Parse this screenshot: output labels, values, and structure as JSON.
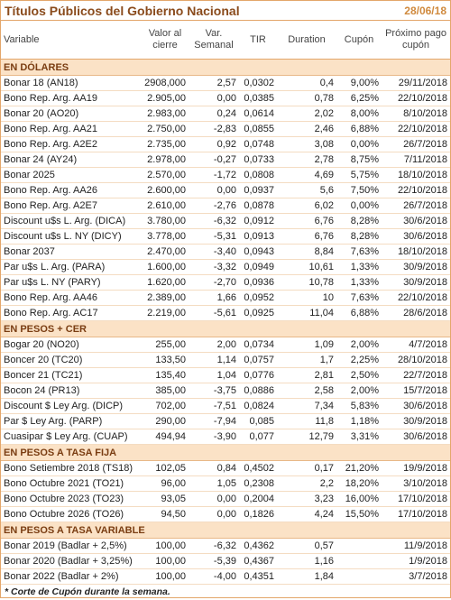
{
  "header": {
    "title": "Títulos Públicos del Gobierno Nacional",
    "date": "28/06/18"
  },
  "table": {
    "columns": [
      "Variable",
      "Valor al cierre",
      "Var. Semanal",
      "TIR",
      "Duration",
      "Cupón",
      "Próximo pago cupón"
    ],
    "sections": [
      {
        "title": "EN DÓLARES",
        "rows": [
          [
            "Bonar 18 (AN18)",
            "2908,000",
            "2,57",
            "0,0302",
            "0,4",
            "9,00%",
            "29/11/2018"
          ],
          [
            "Bono Rep. Arg. AA19",
            "2.905,00",
            "0,00",
            "0,0385",
            "0,78",
            "6,25%",
            "22/10/2018"
          ],
          [
            "Bonar 20 (AO20)",
            "2.983,00",
            "0,24",
            "0,0614",
            "2,02",
            "8,00%",
            "8/10/2018"
          ],
          [
            "Bono Rep. Arg. AA21",
            "2.750,00",
            "-2,83",
            "0,0855",
            "2,46",
            "6,88%",
            "22/10/2018"
          ],
          [
            "Bono Rep. Arg. A2E2",
            "2.735,00",
            "0,92",
            "0,0748",
            "3,08",
            "0,00%",
            "26/7/2018"
          ],
          [
            "Bonar 24 (AY24)",
            "2.978,00",
            "-0,27",
            "0,0733",
            "2,78",
            "8,75%",
            "7/11/2018"
          ],
          [
            "Bonar 2025",
            "2.570,00",
            "-1,72",
            "0,0808",
            "4,69",
            "5,75%",
            "18/10/2018"
          ],
          [
            "Bono Rep. Arg. AA26",
            "2.600,00",
            "0,00",
            "0,0937",
            "5,6",
            "7,50%",
            "22/10/2018"
          ],
          [
            "Bono Rep. Arg. A2E7",
            "2.610,00",
            "-2,76",
            "0,0878",
            "6,02",
            "0,00%",
            "26/7/2018"
          ],
          [
            "Discount u$s L. Arg. (DICA)",
            "3.780,00",
            "-6,32",
            "0,0912",
            "6,76",
            "8,28%",
            "30/6/2018"
          ],
          [
            "Discount u$s L. NY (DICY)",
            "3.778,00",
            "-5,31",
            "0,0913",
            "6,76",
            "8,28%",
            "30/6/2018"
          ],
          [
            "Bonar 2037",
            "2.470,00",
            "-3,40",
            "0,0943",
            "8,84",
            "7,63%",
            "18/10/2018"
          ],
          [
            "Par u$s L. Arg. (PARA)",
            "1.600,00",
            "-3,32",
            "0,0949",
            "10,61",
            "1,33%",
            "30/9/2018"
          ],
          [
            "Par u$s L. NY (PARY)",
            "1.620,00",
            "-2,70",
            "0,0936",
            "10,78",
            "1,33%",
            "30/9/2018"
          ],
          [
            "Bono Rep. Arg. AA46",
            "2.389,00",
            "1,66",
            "0,0952",
            "10",
            "7,63%",
            "22/10/2018"
          ],
          [
            "Bono Rep. Arg. AC17",
            "2.219,00",
            "-5,61",
            "0,0925",
            "11,04",
            "6,88%",
            "28/6/2018"
          ]
        ]
      },
      {
        "title": "EN PESOS + CER",
        "rows": [
          [
            "Bogar 20 (NO20)",
            "255,00",
            "2,00",
            "0,0734",
            "1,09",
            "2,00%",
            "4/7/2018"
          ],
          [
            "Boncer 20 (TC20)",
            "133,50",
            "1,14",
            "0,0757",
            "1,7",
            "2,25%",
            "28/10/2018"
          ],
          [
            "Boncer 21 (TC21)",
            "135,40",
            "1,04",
            "0,0776",
            "2,81",
            "2,50%",
            "22/7/2018"
          ],
          [
            "Bocon 24 (PR13)",
            "385,00",
            "-3,75",
            "0,0886",
            "2,58",
            "2,00%",
            "15/7/2018"
          ],
          [
            "Discount $ Ley Arg. (DICP)",
            "702,00",
            "-7,51",
            "0,0824",
            "7,34",
            "5,83%",
            "30/6/2018"
          ],
          [
            "Par $ Ley Arg. (PARP)",
            "290,00",
            "-7,94",
            "0,085",
            "11,8",
            "1,18%",
            "30/9/2018"
          ],
          [
            "Cuasipar $ Ley Arg. (CUAP)",
            "494,94",
            "-3,90",
            "0,077",
            "12,79",
            "3,31%",
            "30/6/2018"
          ]
        ]
      },
      {
        "title": "EN PESOS A TASA FIJA",
        "rows": [
          [
            "Bono Setiembre 2018 (TS18)",
            "102,05",
            "0,84",
            "0,4502",
            "0,17",
            "21,20%",
            "19/9/2018"
          ],
          [
            "Bono Octubre 2021 (TO21)",
            "96,00",
            "1,05",
            "0,2308",
            "2,2",
            "18,20%",
            "3/10/2018"
          ],
          [
            "Bono Octubre 2023 (TO23)",
            "93,05",
            "0,00",
            "0,2004",
            "3,23",
            "16,00%",
            "17/10/2018"
          ],
          [
            "Bono Octubre 2026 (TO26)",
            "94,50",
            "0,00",
            "0,1826",
            "4,24",
            "15,50%",
            "17/10/2018"
          ]
        ]
      },
      {
        "title": "EN PESOS A TASA VARIABLE",
        "rows": [
          [
            "Bonar 2019 (Badlar + 2,5%)",
            "100,00",
            "-6,32",
            "0,4362",
            "0,57",
            null,
            "11/9/2018"
          ],
          [
            "Bonar 2020 (Badlar + 3,25%)",
            "100,00",
            "-5,39",
            "0,4367",
            "1,16",
            null,
            "1/9/2018"
          ],
          [
            "Bonar 2022 (Badlar + 2%)",
            "100,00",
            "-4,00",
            "0,4351",
            "1,84",
            null,
            "3/7/2018"
          ]
        ]
      }
    ],
    "footnote": "* Corte de Cupón durante la semana."
  }
}
